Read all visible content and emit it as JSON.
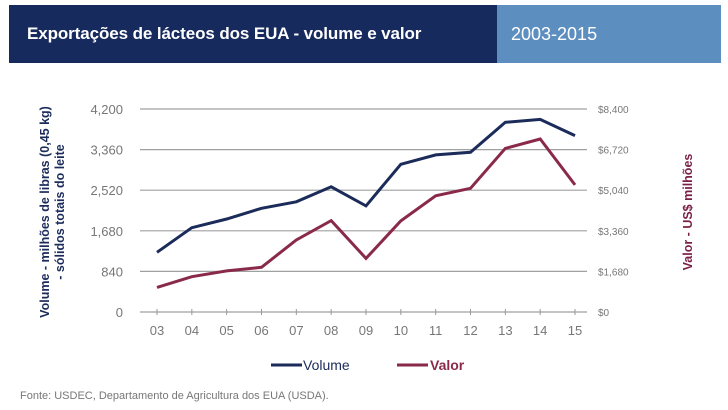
{
  "header": {
    "title": "Exportações de lácteos dos EUA - volume e valor",
    "years": "2003-2015"
  },
  "colors": {
    "header_dark": "#172a5e",
    "header_light": "#5d8ec0",
    "volume": "#1b2b5a",
    "valor": "#8a2a4b",
    "grid": "#a0a0a0"
  },
  "chart_data": {
    "type": "line",
    "title": "Exportações de lácteos dos EUA - volume e valor",
    "subtitle": "2003-2015",
    "x": [
      "03",
      "04",
      "05",
      "06",
      "07",
      "08",
      "09",
      "10",
      "11",
      "12",
      "13",
      "14",
      "15"
    ],
    "xlabel": "",
    "ylabel": "Volume - milhões de libras (0,45 kg) - sólidos totais do leite",
    "ylabel_lines": [
      "Volume - milhões de libras (0,45 kg)",
      "- sólidos totais do leite"
    ],
    "ylabel_right": "Valor - US$ milhões",
    "ylim": [
      0,
      4200
    ],
    "ylim_right": [
      0,
      8400
    ],
    "yticks": [
      "0",
      "840",
      "1,680",
      "2,520",
      "3,360",
      "4,200"
    ],
    "yticks_right": [
      "$0",
      "$1,680",
      "$3,360",
      "$5,040",
      "$6,720",
      "$8,400"
    ],
    "grid": true,
    "legend_position": "bottom",
    "series": [
      {
        "name": "Volume",
        "axis": "left",
        "values": [
          1235,
          1745,
          1925,
          2145,
          2280,
          2590,
          2195,
          3055,
          3250,
          3305,
          3925,
          3985,
          3650
        ]
      },
      {
        "name": "Valor",
        "axis": "right",
        "values": [
          1020,
          1460,
          1700,
          1850,
          2980,
          3780,
          2220,
          3770,
          4810,
          5120,
          6770,
          7160,
          5260
        ]
      }
    ]
  },
  "source": "Fonte: USDEC, Departamento de Agricultura dos EUA (USDA)."
}
